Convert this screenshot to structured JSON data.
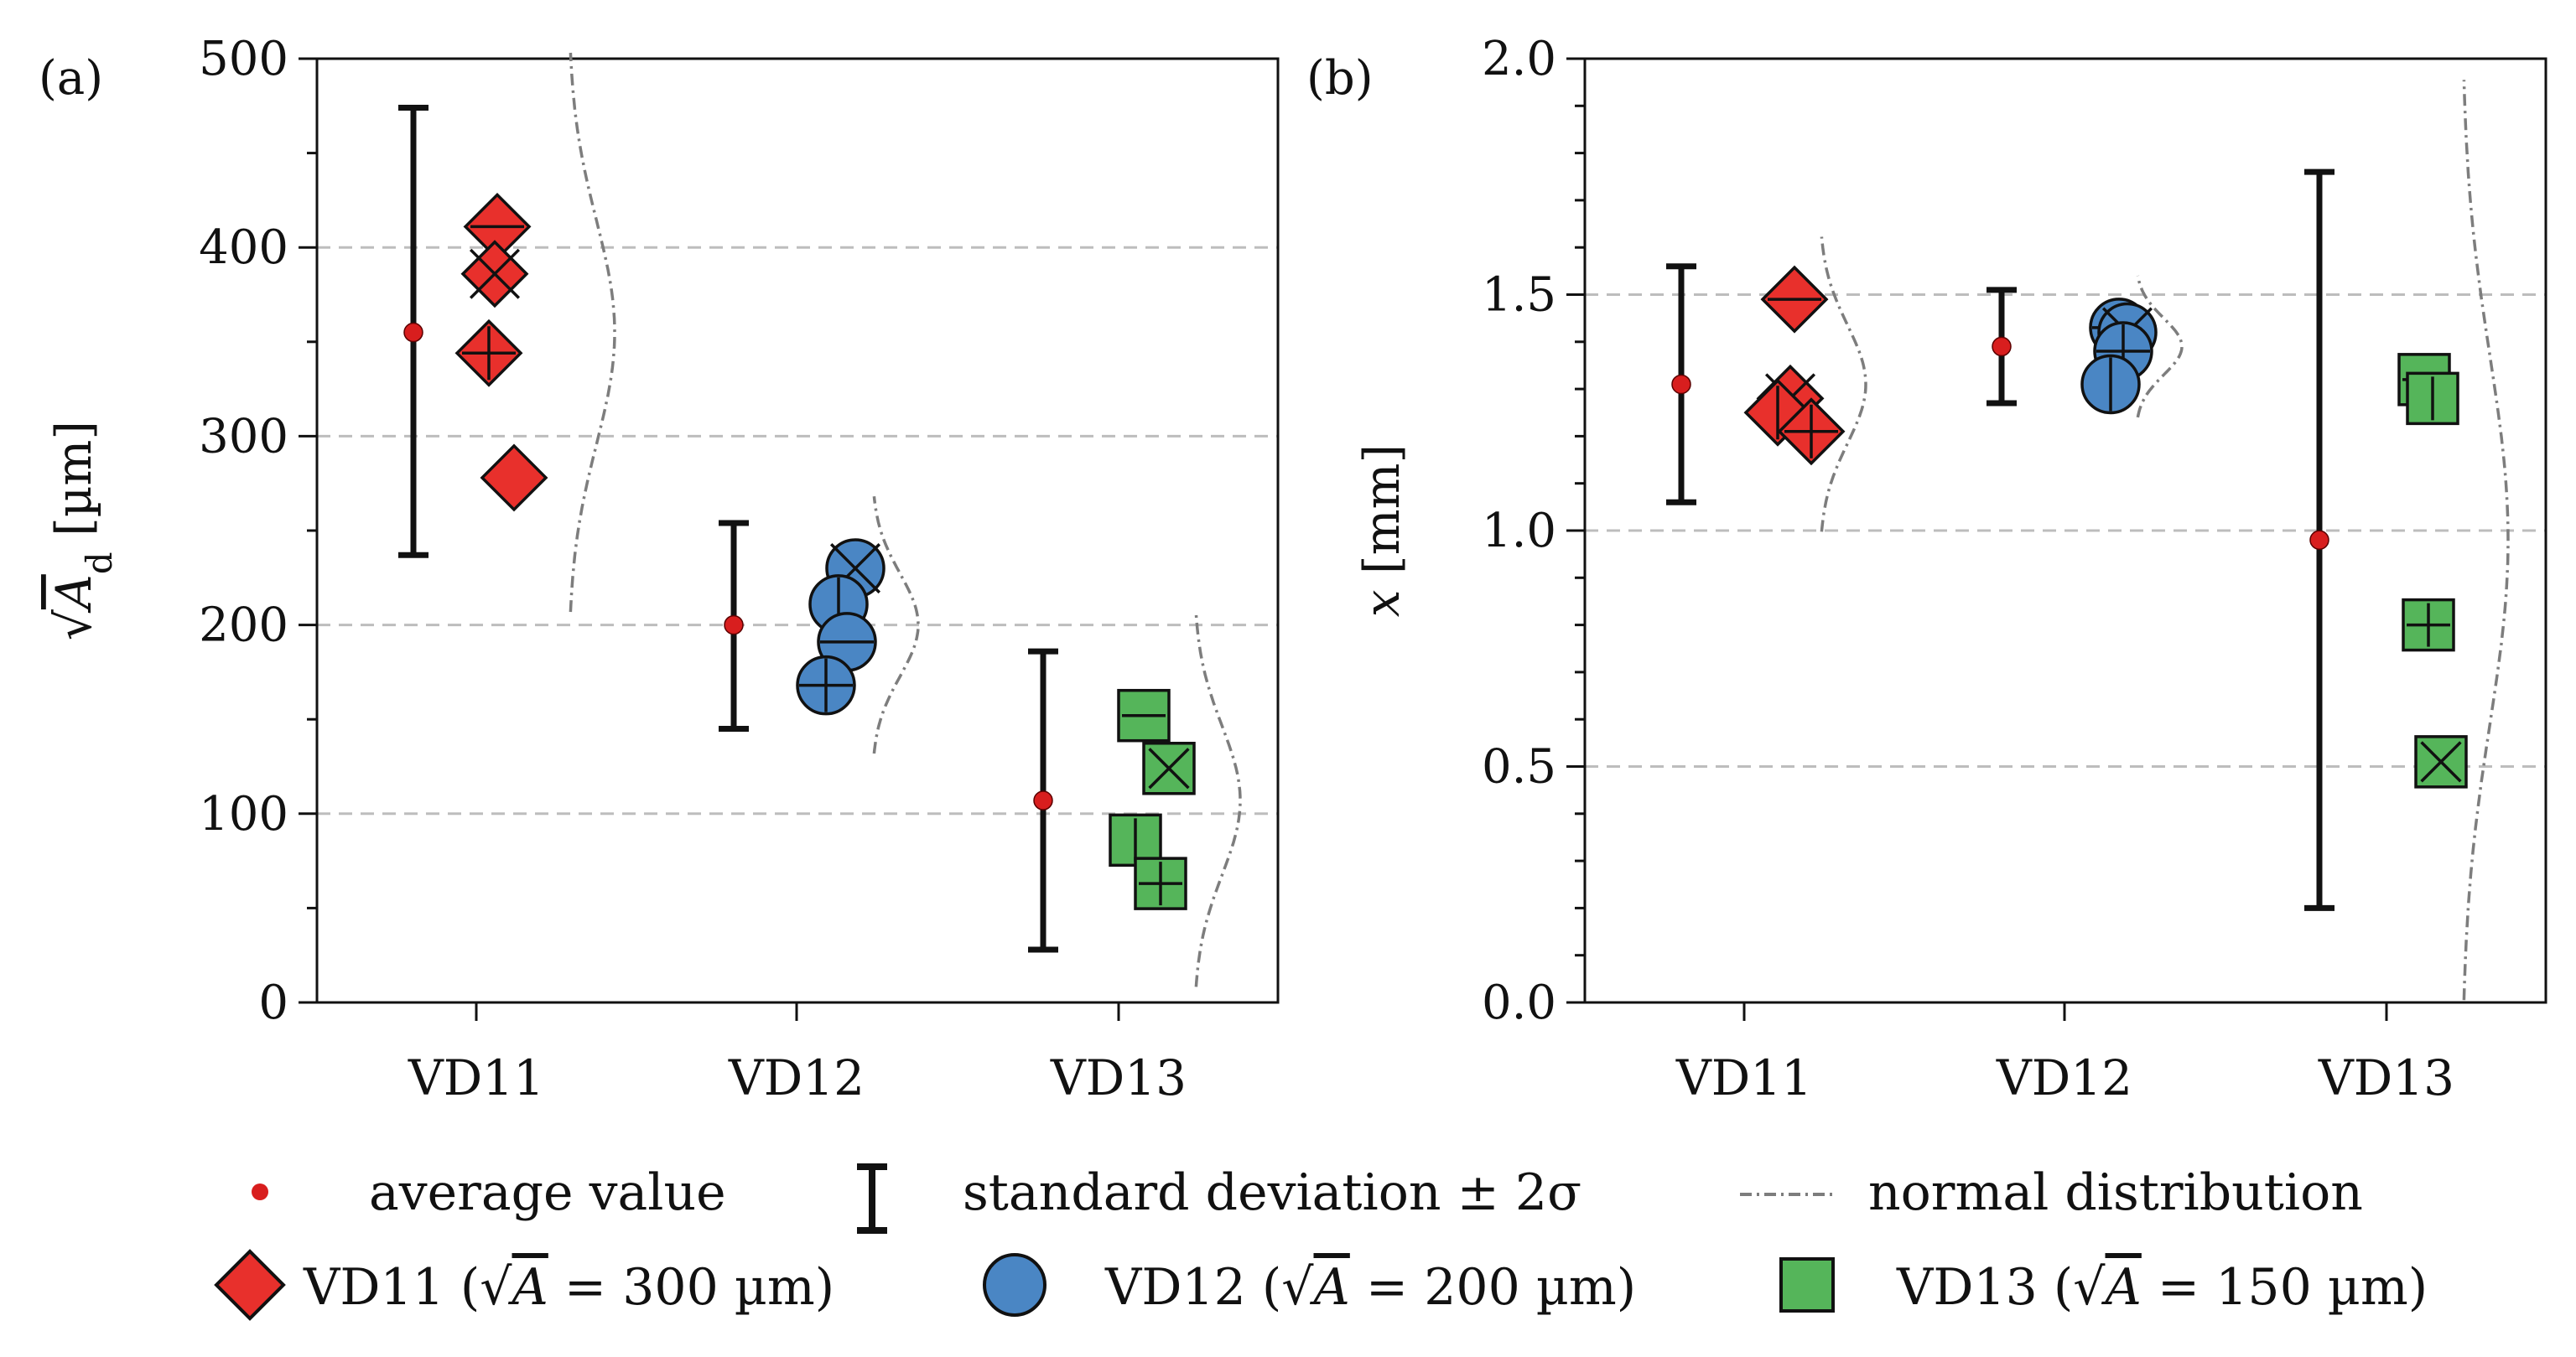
{
  "colors": {
    "VD11": "#e8302c",
    "VD12": "#4a86c4",
    "VD13": "#55b55a",
    "mean": "#d81e1e",
    "errorbar": "#111111",
    "normal": "#7d7d7d",
    "grid": "#bdbdbd"
  },
  "chart_data": [
    {
      "type": "scatter",
      "panel_label": "(a)",
      "ylabel": "√A_d [µm]",
      "ylabel_parts": {
        "root": "√",
        "var": "A",
        "sub": "d",
        "unit": "[µm]"
      },
      "categories": [
        "VD11",
        "VD12",
        "VD13"
      ],
      "ylim": [
        0,
        500
      ],
      "yticks": [
        "0",
        "100",
        "200",
        "300",
        "400",
        "500"
      ],
      "grid": "dashed horizontal at 100, 200, 300, 400",
      "groups": [
        {
          "name": "VD11",
          "mean": 355,
          "std2_low": 237,
          "std2_high": 474,
          "points": [
            {
              "value": 411,
              "marker": "diamond",
              "cross": "minus"
            },
            {
              "value": 386,
              "marker": "diamond",
              "cross": "x"
            },
            {
              "value": 344,
              "marker": "diamond",
              "cross": "plus"
            },
            {
              "value": 278,
              "marker": "diamond",
              "cross": "none"
            }
          ]
        },
        {
          "name": "VD12",
          "mean": 200,
          "std2_low": 145,
          "std2_high": 254,
          "points": [
            {
              "value": 230,
              "marker": "circle",
              "cross": "x"
            },
            {
              "value": 211,
              "marker": "circle",
              "cross": "vertical"
            },
            {
              "value": 191,
              "marker": "circle",
              "cross": "minus"
            },
            {
              "value": 168,
              "marker": "circle",
              "cross": "plus"
            }
          ]
        },
        {
          "name": "VD13",
          "mean": 107,
          "std2_low": 28,
          "std2_high": 186,
          "points": [
            {
              "value": 152,
              "marker": "square",
              "cross": "minus"
            },
            {
              "value": 124,
              "marker": "square",
              "cross": "x"
            },
            {
              "value": 86,
              "marker": "square",
              "cross": "vertical"
            },
            {
              "value": 63,
              "marker": "square",
              "cross": "plus"
            }
          ]
        }
      ]
    },
    {
      "type": "scatter",
      "panel_label": "(b)",
      "ylabel": "x [mm]",
      "ylabel_parts": {
        "var": "x",
        "unit": "[mm]"
      },
      "categories": [
        "VD11",
        "VD12",
        "VD13"
      ],
      "ylim": [
        0,
        2
      ],
      "yticks": [
        "0.0",
        "0.5",
        "1.0",
        "1.5",
        "2.0"
      ],
      "grid": "dashed horizontal at 0.5, 1.0, 1.5",
      "groups": [
        {
          "name": "VD11",
          "mean": 1.31,
          "std2_low": 1.06,
          "std2_high": 1.56,
          "points": [
            {
              "value": 1.49,
              "marker": "diamond",
              "cross": "minus"
            },
            {
              "value": 1.28,
              "marker": "diamond",
              "cross": "x"
            },
            {
              "value": 1.25,
              "marker": "diamond",
              "cross": "vertical"
            },
            {
              "value": 1.21,
              "marker": "diamond",
              "cross": "plus"
            }
          ]
        },
        {
          "name": "VD12",
          "mean": 1.39,
          "std2_low": 1.27,
          "std2_high": 1.51,
          "points": [
            {
              "value": 1.43,
              "marker": "circle",
              "cross": "minus"
            },
            {
              "value": 1.42,
              "marker": "circle",
              "cross": "x"
            },
            {
              "value": 1.38,
              "marker": "circle",
              "cross": "plus"
            },
            {
              "value": 1.31,
              "marker": "circle",
              "cross": "vertical"
            }
          ]
        },
        {
          "name": "VD13",
          "mean": 0.98,
          "std2_low": 0.2,
          "std2_high": 1.76,
          "points": [
            {
              "value": 1.32,
              "marker": "square",
              "cross": "minus"
            },
            {
              "value": 1.28,
              "marker": "square",
              "cross": "vertical"
            },
            {
              "value": 0.8,
              "marker": "square",
              "cross": "plus"
            },
            {
              "value": 0.51,
              "marker": "square",
              "cross": "x"
            }
          ]
        }
      ]
    }
  ],
  "legend": {
    "row1": [
      {
        "key": "mean",
        "label": "average value"
      },
      {
        "key": "errorbar",
        "label": "standard deviation ± 2σ"
      },
      {
        "key": "normal",
        "label": "normal distribution"
      }
    ],
    "row2": [
      {
        "key": "VD11",
        "marker": "diamond",
        "label": "VD11 (√A = 300 µm)",
        "prefix": "VD11 (",
        "root": "√",
        "var": "A",
        "suffix": " = 300 µm)"
      },
      {
        "key": "VD12",
        "marker": "circle",
        "label": "VD12 (√A = 200 µm)",
        "prefix": "VD12 (",
        "root": "√",
        "var": "A",
        "suffix": " = 200 µm)"
      },
      {
        "key": "VD13",
        "marker": "square",
        "label": "VD13 (√A = 150 µm)",
        "prefix": "VD13 (",
        "root": "√",
        "var": "A",
        "suffix": " = 150 µm)"
      }
    ]
  }
}
